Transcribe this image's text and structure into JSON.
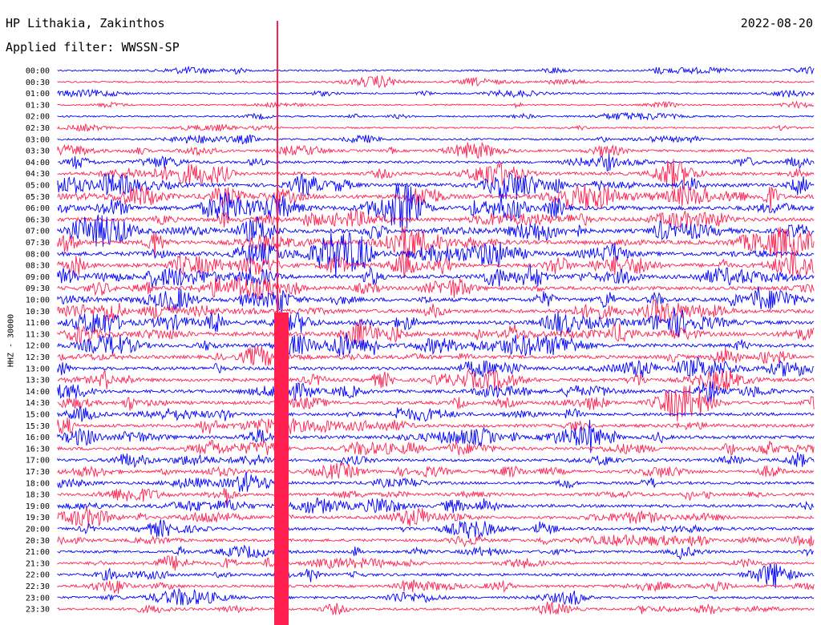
{
  "header": {
    "station": "HP Lithakia, Zakinthos",
    "filter": "Applied filter: WWSSN-SP",
    "date": "2022-08-20",
    "channel": "HHZ - 30000"
  },
  "colors": {
    "even_trace": "#0000ff",
    "odd_trace": "#ff2050",
    "text": "#000000"
  },
  "chart_data": {
    "type": "line",
    "title": "HP Lithakia, Zakinthos",
    "subtitle": "Applied filter: WWSSN-SP",
    "ylabel": "HHZ - 30000",
    "xlabel": "",
    "grid": false,
    "row_labels": [
      "00:00",
      "00:30",
      "01:00",
      "01:30",
      "02:00",
      "02:30",
      "03:00",
      "03:30",
      "04:00",
      "04:30",
      "05:00",
      "05:30",
      "06:00",
      "06:30",
      "07:00",
      "07:30",
      "08:00",
      "08:30",
      "09:00",
      "09:30",
      "10:00",
      "10:30",
      "11:00",
      "11:30",
      "12:00",
      "12:30",
      "13:00",
      "13:30",
      "14:00",
      "14:30",
      "15:00",
      "15:30",
      "16:00",
      "16:30",
      "17:00",
      "17:30",
      "18:00",
      "18:30",
      "19:00",
      "19:30",
      "20:00",
      "20:30",
      "21:00",
      "21:30",
      "22:00",
      "22:30",
      "23:00",
      "23:30"
    ],
    "row_activity": [
      0.25,
      0.2,
      0.2,
      0.15,
      0.2,
      0.2,
      0.3,
      0.45,
      0.5,
      0.7,
      0.9,
      1.0,
      1.0,
      0.95,
      1.0,
      1.0,
      1.0,
      0.95,
      0.9,
      0.85,
      0.9,
      0.85,
      0.9,
      1.0,
      0.85,
      0.8,
      0.75,
      0.8,
      0.7,
      0.7,
      0.65,
      0.7,
      0.75,
      0.7,
      0.6,
      0.55,
      0.55,
      0.6,
      0.65,
      0.6,
      0.6,
      0.55,
      0.5,
      0.5,
      0.55,
      0.5,
      0.5,
      0.45
    ]
  }
}
